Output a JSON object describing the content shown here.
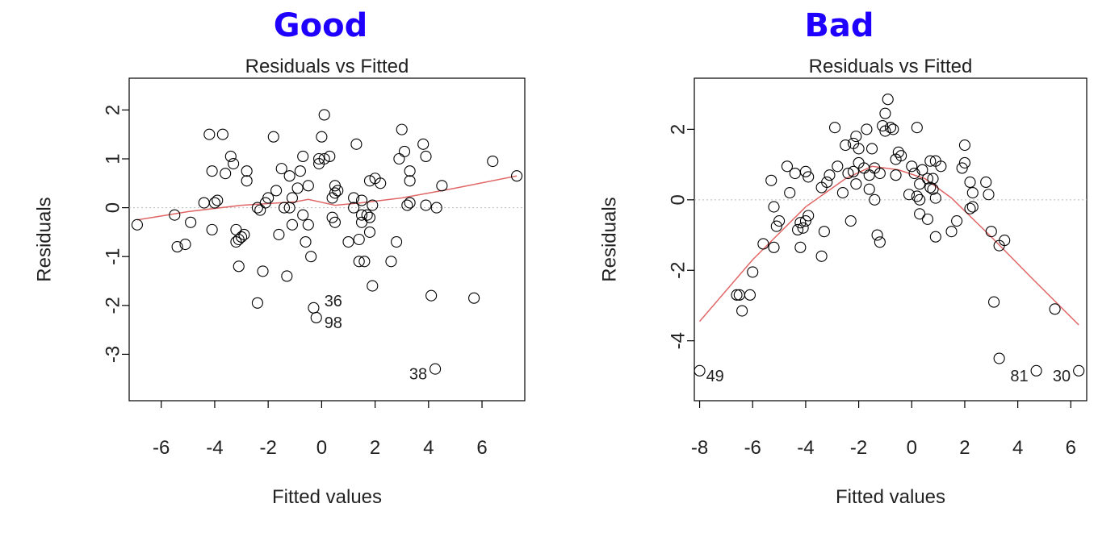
{
  "colors": {
    "heading": "#1f00ff",
    "points": "#000000",
    "smooth": "#e06666",
    "zero_line": "#bbbbbb"
  },
  "chart_data": [
    {
      "heading": "Good",
      "type": "scatter",
      "title": "Residuals vs Fitted",
      "xlabel": "Fitted values",
      "ylabel": "Residuals",
      "xlim": [
        -7.2,
        7.6
      ],
      "ylim": [
        -3.95,
        2.65
      ],
      "xticks": [
        -6,
        -4,
        -2,
        0,
        2,
        4,
        6
      ],
      "yticks": [
        -3,
        -2,
        -1,
        0,
        1,
        2
      ],
      "reference_line_y": 0,
      "points": [
        [
          -6.9,
          -0.35
        ],
        [
          -5.5,
          -0.15
        ],
        [
          -5.4,
          -0.8
        ],
        [
          -5.1,
          -0.75
        ],
        [
          -4.9,
          -0.3
        ],
        [
          -4.4,
          0.1
        ],
        [
          -4.2,
          1.5
        ],
        [
          -4.1,
          0.75
        ],
        [
          -4.1,
          -0.45
        ],
        [
          -4.0,
          0.1
        ],
        [
          -3.9,
          0.15
        ],
        [
          -3.7,
          1.5
        ],
        [
          -3.6,
          0.7
        ],
        [
          -3.4,
          1.05
        ],
        [
          -3.3,
          0.9
        ],
        [
          -3.2,
          -0.45
        ],
        [
          -3.2,
          -0.7
        ],
        [
          -3.1,
          -1.2
        ],
        [
          -3.1,
          -0.65
        ],
        [
          -3.0,
          -0.6
        ],
        [
          -2.9,
          -0.55
        ],
        [
          -2.8,
          0.75
        ],
        [
          -2.8,
          0.55
        ],
        [
          -2.4,
          -1.95
        ],
        [
          -2.4,
          0.0
        ],
        [
          -2.3,
          -0.05
        ],
        [
          -2.2,
          -1.3
        ],
        [
          -2.1,
          0.1
        ],
        [
          -2.0,
          0.2
        ],
        [
          -1.8,
          1.45
        ],
        [
          -1.7,
          0.35
        ],
        [
          -1.6,
          -0.55
        ],
        [
          -1.5,
          0.8
        ],
        [
          -1.4,
          0.0
        ],
        [
          -1.3,
          -1.4
        ],
        [
          -1.2,
          0.0
        ],
        [
          -1.2,
          0.65
        ],
        [
          -1.1,
          0.2
        ],
        [
          -1.1,
          -0.35
        ],
        [
          -0.9,
          0.4
        ],
        [
          -0.8,
          0.75
        ],
        [
          -0.7,
          1.05
        ],
        [
          -0.7,
          -0.15
        ],
        [
          -0.6,
          -0.7
        ],
        [
          -0.5,
          -0.35
        ],
        [
          -0.5,
          0.45
        ],
        [
          -0.4,
          -1.0
        ],
        [
          -0.3,
          -2.05
        ],
        [
          -0.2,
          -2.25
        ],
        [
          -0.1,
          0.9
        ],
        [
          -0.1,
          1.0
        ],
        [
          0.0,
          1.45
        ],
        [
          0.1,
          1.9
        ],
        [
          0.1,
          1.0
        ],
        [
          0.3,
          1.05
        ],
        [
          0.4,
          0.2
        ],
        [
          0.4,
          -0.2
        ],
        [
          0.5,
          0.45
        ],
        [
          0.5,
          0.3
        ],
        [
          0.5,
          -0.3
        ],
        [
          0.6,
          0.35
        ],
        [
          1.0,
          -0.7
        ],
        [
          1.2,
          0.2
        ],
        [
          1.2,
          0.0
        ],
        [
          1.3,
          1.3
        ],
        [
          1.4,
          -0.65
        ],
        [
          1.4,
          -1.1
        ],
        [
          1.5,
          -0.15
        ],
        [
          1.5,
          0.15
        ],
        [
          1.5,
          -0.3
        ],
        [
          1.6,
          -1.1
        ],
        [
          1.7,
          -0.15
        ],
        [
          1.8,
          0.55
        ],
        [
          1.8,
          -0.2
        ],
        [
          1.8,
          -0.5
        ],
        [
          1.9,
          0.05
        ],
        [
          1.9,
          -1.6
        ],
        [
          2.0,
          0.6
        ],
        [
          2.2,
          0.5
        ],
        [
          2.6,
          -1.1
        ],
        [
          2.8,
          -0.7
        ],
        [
          2.9,
          1.0
        ],
        [
          3.0,
          1.6
        ],
        [
          3.1,
          1.15
        ],
        [
          3.2,
          0.05
        ],
        [
          3.3,
          0.75
        ],
        [
          3.3,
          0.55
        ],
        [
          3.3,
          0.1
        ],
        [
          3.8,
          1.3
        ],
        [
          3.9,
          0.05
        ],
        [
          3.9,
          1.05
        ],
        [
          4.1,
          -1.8
        ],
        [
          4.3,
          0.0
        ],
        [
          4.5,
          0.45
        ],
        [
          5.7,
          -1.85
        ],
        [
          6.4,
          0.95
        ],
        [
          7.3,
          0.65
        ],
        [
          4.25,
          -3.3
        ]
      ],
      "smooth_line": {
        "x": [
          -6.9,
          -5,
          -3,
          -1,
          -0.5,
          0.5,
          1.5,
          3,
          5,
          7.3
        ],
        "y": [
          -0.25,
          -0.08,
          0.05,
          0.12,
          0.17,
          0.05,
          0.1,
          0.2,
          0.4,
          0.65
        ]
      },
      "labels": [
        {
          "text": "36",
          "x": 0.1,
          "y": -2.05
        },
        {
          "text": "98",
          "x": 0.1,
          "y": -2.25
        },
        {
          "text": "38",
          "x": 4.25,
          "y": -3.3
        }
      ]
    },
    {
      "heading": "Bad",
      "type": "scatter",
      "title": "Residuals vs Fitted",
      "xlabel": "Fitted values",
      "ylabel": "Residuals",
      "xlim": [
        -8.2,
        6.6
      ],
      "ylim": [
        -5.7,
        3.45
      ],
      "xticks": [
        -8,
        -6,
        -4,
        -2,
        0,
        2,
        4,
        6
      ],
      "yticks": [
        -4,
        -2,
        0,
        2
      ],
      "reference_line_y": 0,
      "points": [
        [
          -8.0,
          -4.85
        ],
        [
          -6.6,
          -2.7
        ],
        [
          -6.5,
          -2.7
        ],
        [
          -6.4,
          -3.15
        ],
        [
          -6.1,
          -2.7
        ],
        [
          -6.0,
          -2.05
        ],
        [
          -5.6,
          -1.25
        ],
        [
          -5.3,
          0.55
        ],
        [
          -5.2,
          -1.35
        ],
        [
          -5.2,
          -0.2
        ],
        [
          -5.1,
          -0.75
        ],
        [
          -5.0,
          -0.6
        ],
        [
          -4.7,
          0.95
        ],
        [
          -4.6,
          0.2
        ],
        [
          -4.4,
          0.75
        ],
        [
          -4.3,
          -0.85
        ],
        [
          -4.2,
          -0.65
        ],
        [
          -4.2,
          -1.35
        ],
        [
          -4.1,
          -0.8
        ],
        [
          -4.0,
          -0.6
        ],
        [
          -4.0,
          0.8
        ],
        [
          -3.9,
          -0.45
        ],
        [
          -3.9,
          0.65
        ],
        [
          -3.4,
          -1.6
        ],
        [
          -3.4,
          0.35
        ],
        [
          -3.3,
          -0.9
        ],
        [
          -3.2,
          0.5
        ],
        [
          -3.1,
          0.7
        ],
        [
          -2.9,
          2.05
        ],
        [
          -2.8,
          0.95
        ],
        [
          -2.6,
          0.2
        ],
        [
          -2.5,
          1.55
        ],
        [
          -2.4,
          0.75
        ],
        [
          -2.3,
          -0.6
        ],
        [
          -2.2,
          1.6
        ],
        [
          -2.2,
          0.8
        ],
        [
          -2.1,
          1.8
        ],
        [
          -2.1,
          0.45
        ],
        [
          -2.0,
          1.45
        ],
        [
          -2.0,
          1.05
        ],
        [
          -1.8,
          0.9
        ],
        [
          -1.7,
          2.0
        ],
        [
          -1.6,
          0.3
        ],
        [
          -1.6,
          0.7
        ],
        [
          -1.5,
          1.45
        ],
        [
          -1.4,
          0.0
        ],
        [
          -1.4,
          0.9
        ],
        [
          -1.3,
          -1.0
        ],
        [
          -1.2,
          -1.2
        ],
        [
          -1.2,
          0.75
        ],
        [
          -1.1,
          2.1
        ],
        [
          -1.0,
          2.45
        ],
        [
          -1.0,
          1.95
        ],
        [
          -0.9,
          2.85
        ],
        [
          -0.8,
          2.05
        ],
        [
          -0.7,
          2.0
        ],
        [
          -0.6,
          1.15
        ],
        [
          -0.6,
          0.7
        ],
        [
          -0.5,
          1.35
        ],
        [
          -0.4,
          1.25
        ],
        [
          -0.1,
          0.15
        ],
        [
          0.0,
          0.95
        ],
        [
          0.1,
          0.75
        ],
        [
          0.2,
          2.05
        ],
        [
          0.2,
          0.1
        ],
        [
          0.3,
          0.45
        ],
        [
          0.3,
          0.0
        ],
        [
          0.3,
          -0.4
        ],
        [
          0.4,
          0.85
        ],
        [
          0.6,
          -0.55
        ],
        [
          0.6,
          0.6
        ],
        [
          0.7,
          1.1
        ],
        [
          0.7,
          0.35
        ],
        [
          0.8,
          0.3
        ],
        [
          0.8,
          0.6
        ],
        [
          0.9,
          1.1
        ],
        [
          0.9,
          0.05
        ],
        [
          0.9,
          -1.05
        ],
        [
          1.1,
          0.95
        ],
        [
          1.5,
          -0.9
        ],
        [
          1.7,
          -0.6
        ],
        [
          1.9,
          0.9
        ],
        [
          2.0,
          1.55
        ],
        [
          2.0,
          1.05
        ],
        [
          2.2,
          0.5
        ],
        [
          2.2,
          -0.25
        ],
        [
          2.3,
          0.2
        ],
        [
          2.3,
          -0.2
        ],
        [
          2.8,
          0.5
        ],
        [
          2.9,
          0.15
        ],
        [
          3.0,
          -0.9
        ],
        [
          3.1,
          -2.9
        ],
        [
          3.3,
          -4.5
        ],
        [
          3.3,
          -1.3
        ],
        [
          3.5,
          -1.15
        ],
        [
          4.7,
          -4.85
        ],
        [
          5.4,
          -3.1
        ],
        [
          6.3,
          -4.85
        ]
      ],
      "smooth_line": {
        "x": [
          -8,
          -6,
          -4,
          -2.5,
          -1.5,
          -0.5,
          0.5,
          1.5,
          3,
          4.5,
          6.3
        ],
        "y": [
          -3.45,
          -1.7,
          -0.2,
          0.6,
          0.95,
          0.85,
          0.6,
          0.05,
          -1.05,
          -2.2,
          -3.55
        ]
      },
      "labels": [
        {
          "text": "49",
          "x": -8.0,
          "y": -4.85
        },
        {
          "text": "81",
          "x": 4.7,
          "y": -4.85
        },
        {
          "text": "30",
          "x": 6.3,
          "y": -4.85
        }
      ]
    }
  ]
}
